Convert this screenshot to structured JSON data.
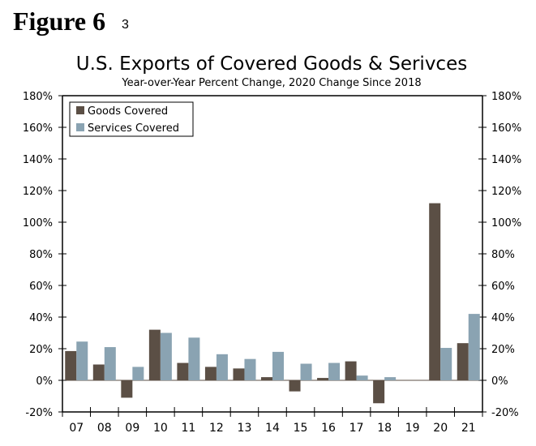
{
  "figure": {
    "label": "Figure 6",
    "footnote": "3"
  },
  "chart_data": {
    "type": "bar",
    "title": "U.S. Exports of Covered Goods & Serivces",
    "subtitle": "Year-over-Year Percent Change, 2020 Change Since 2018",
    "xlabel": "",
    "ylabel": "",
    "categories": [
      "07",
      "08",
      "09",
      "10",
      "11",
      "12",
      "13",
      "14",
      "15",
      "16",
      "17",
      "18",
      "19",
      "20",
      "21"
    ],
    "series": [
      {
        "name": "Goods Covered",
        "color": "#5b4f45",
        "values": [
          18.5,
          10,
          -11,
          32,
          11,
          8.5,
          7.5,
          2,
          -7,
          1.5,
          12,
          -14.5,
          0,
          112,
          23.5
        ]
      },
      {
        "name": "Services Covered",
        "color": "#8aa3b2",
        "values": [
          24.5,
          21,
          8.5,
          30,
          27,
          16.5,
          13.5,
          18,
          10.5,
          11,
          3,
          2,
          0,
          20.5,
          42
        ]
      }
    ],
    "ylim": [
      -20,
      180
    ],
    "yticks": [
      -20,
      0,
      20,
      40,
      60,
      80,
      100,
      120,
      140,
      160,
      180
    ],
    "ytick_labels": [
      "-20%",
      "0%",
      "20%",
      "40%",
      "60%",
      "80%",
      "100%",
      "120%",
      "140%",
      "160%",
      "180%"
    ],
    "secondary_y_axis": true,
    "grid": false,
    "legend": {
      "position": "top-left",
      "entries": [
        "Goods Covered",
        "Services Covered"
      ]
    }
  }
}
